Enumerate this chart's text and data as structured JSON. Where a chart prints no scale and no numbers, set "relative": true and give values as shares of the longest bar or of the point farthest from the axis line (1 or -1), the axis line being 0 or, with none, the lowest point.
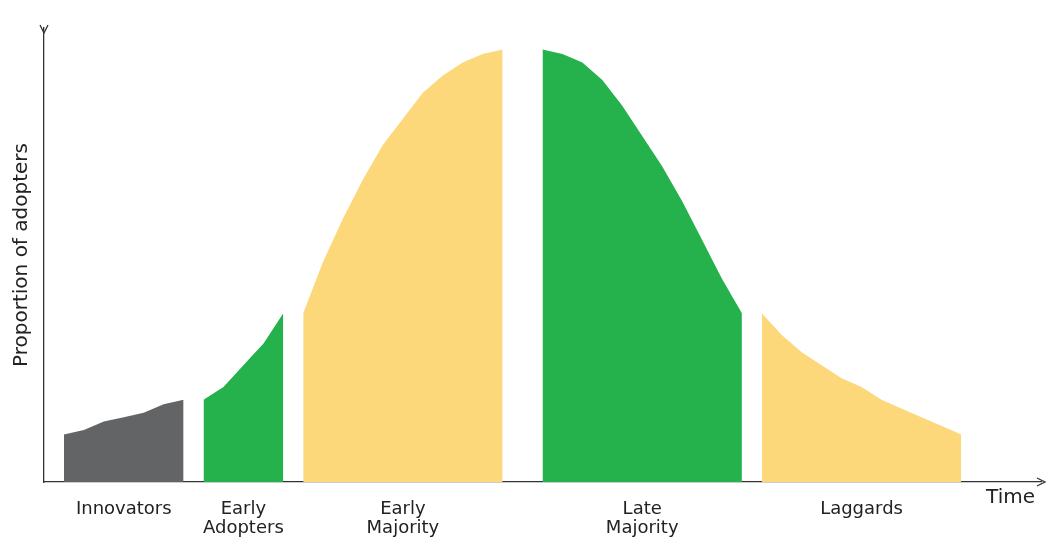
{
  "chart_data": {
    "type": "area",
    "relative": true,
    "xlabel": "Time",
    "ylabel": "Proportion of adopters",
    "marker": "none",
    "categories": [
      null,
      null,
      null,
      null,
      null,
      null,
      null,
      null,
      null,
      null,
      null,
      null,
      null,
      null,
      null,
      null,
      null,
      null,
      null,
      null,
      null,
      null,
      null,
      null,
      null,
      null,
      null,
      null,
      null,
      null,
      null,
      null,
      null,
      null,
      null,
      null,
      null,
      null,
      null,
      null,
      null,
      null,
      null,
      null,
      null,
      null,
      null,
      null,
      null,
      null,
      null
    ],
    "series": [
      {
        "name": "Innovators",
        "color": "#636466",
        "values": [
          null,
          0.11,
          0.12,
          0.14,
          0.15,
          0.16,
          0.18,
          0.19,
          null,
          null,
          null,
          null,
          null,
          null,
          null,
          null,
          null,
          null,
          null,
          null,
          null,
          null,
          null,
          null,
          null,
          null,
          null,
          null,
          null,
          null,
          null,
          null,
          null,
          null,
          null,
          null,
          null,
          null,
          null,
          null,
          null,
          null,
          null,
          null,
          null,
          null,
          null,
          null,
          null,
          null,
          null
        ]
      },
      {
        "name": "Early Adopters",
        "color": "#25b14c",
        "values": [
          null,
          null,
          null,
          null,
          null,
          null,
          null,
          null,
          0.19,
          0.22,
          0.27,
          0.32,
          0.39,
          null,
          null,
          null,
          null,
          null,
          null,
          null,
          null,
          null,
          null,
          null,
          null,
          null,
          null,
          null,
          null,
          null,
          null,
          null,
          null,
          null,
          null,
          null,
          null,
          null,
          null,
          null,
          null,
          null,
          null,
          null,
          null,
          null,
          null,
          null,
          null,
          null,
          null
        ]
      },
      {
        "name": "Early Majority",
        "color": "#fcd87a",
        "values": [
          null,
          null,
          null,
          null,
          null,
          null,
          null,
          null,
          null,
          null,
          null,
          null,
          null,
          0.39,
          0.51,
          0.61,
          0.7,
          0.78,
          0.84,
          0.9,
          0.94,
          0.97,
          0.99,
          1.0,
          null,
          null,
          null,
          null,
          null,
          null,
          null,
          null,
          null,
          null,
          null,
          null,
          null,
          null,
          null,
          null,
          null,
          null,
          null,
          null,
          null,
          null,
          null,
          null,
          null,
          null,
          null
        ]
      },
      {
        "name": "Late Majority",
        "color": "#25b14c",
        "values": [
          null,
          null,
          null,
          null,
          null,
          null,
          null,
          null,
          null,
          null,
          null,
          null,
          null,
          null,
          null,
          null,
          null,
          null,
          null,
          null,
          null,
          null,
          null,
          null,
          null,
          1.0,
          0.99,
          0.97,
          0.93,
          0.87,
          0.8,
          0.73,
          0.65,
          0.56,
          0.47,
          0.39,
          null,
          null,
          null,
          null,
          null,
          null,
          null,
          null,
          null,
          null,
          null,
          null,
          null,
          null,
          null
        ]
      },
      {
        "name": "Laggards",
        "color": "#fcd87a",
        "values": [
          null,
          null,
          null,
          null,
          null,
          null,
          null,
          null,
          null,
          null,
          null,
          null,
          null,
          null,
          null,
          null,
          null,
          null,
          null,
          null,
          null,
          null,
          null,
          null,
          null,
          null,
          null,
          null,
          null,
          null,
          null,
          null,
          null,
          null,
          null,
          null,
          0.39,
          0.34,
          0.3,
          0.27,
          0.24,
          0.22,
          0.19,
          0.17,
          0.15,
          0.13,
          0.11,
          null,
          null,
          null,
          null
        ]
      }
    ]
  }
}
